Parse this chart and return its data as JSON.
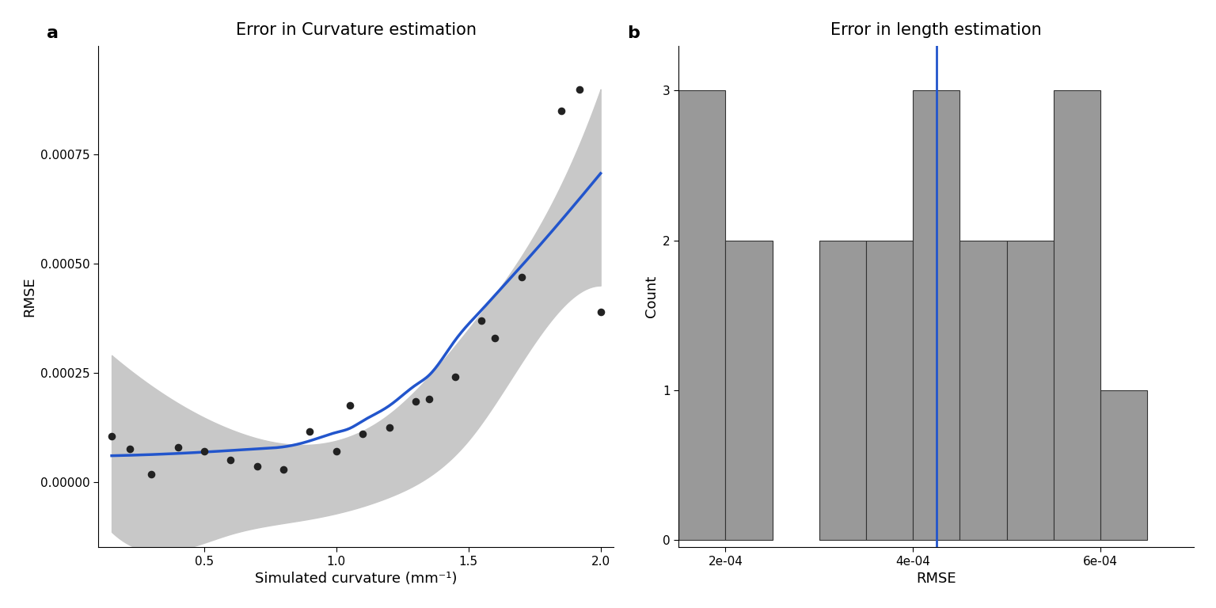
{
  "title_a": "Error in Curvature estimation",
  "title_b": "Error in length estimation",
  "label_a": "a",
  "label_b": "b",
  "xlabel_a": "Simulated curvature (mm⁻¹)",
  "ylabel_a": "RMSE",
  "xlabel_b": "RMSE",
  "ylabel_b": "Count",
  "scatter_x": [
    0.15,
    0.22,
    0.3,
    0.4,
    0.5,
    0.6,
    0.7,
    0.8,
    0.9,
    1.0,
    1.05,
    1.1,
    1.2,
    1.3,
    1.35,
    1.45,
    1.55,
    1.6,
    1.7,
    1.85,
    1.92,
    2.0
  ],
  "scatter_y": [
    0.000105,
    7.5e-05,
    1.8e-05,
    8e-05,
    7e-05,
    5e-05,
    3.5e-05,
    2.8e-05,
    0.000115,
    7e-05,
    0.000175,
    0.00011,
    0.000125,
    0.000185,
    0.00019,
    0.00024,
    0.00037,
    0.00033,
    0.00047,
    0.00085,
    0.0009,
    0.00039
  ],
  "xlim_a": [
    0.1,
    2.05
  ],
  "ylim_a": [
    -0.00015,
    0.001
  ],
  "yticks_a": [
    0.0,
    0.00025,
    0.0005,
    0.00075
  ],
  "xticks_a": [
    0.5,
    1.0,
    1.5,
    2.0
  ],
  "hist_bin_edges": [
    0.00015,
    0.0002,
    0.00025,
    0.0003,
    0.00035,
    0.0004,
    0.00045,
    0.0005,
    0.00055,
    0.0006,
    0.00065,
    0.0007
  ],
  "hist_counts": [
    3,
    2,
    0,
    2,
    2,
    3,
    2,
    2,
    3,
    1,
    0
  ],
  "blue_vline": 0.000425,
  "xlim_b": [
    0.00015,
    0.0007
  ],
  "ylim_b": [
    -0.05,
    3.3
  ],
  "yticks_b": [
    0,
    1,
    2,
    3
  ],
  "xticks_b": [
    0.0002,
    0.0004,
    0.0006
  ],
  "bar_color": "#999999",
  "bar_edge_color": "#333333",
  "scatter_color": "#222222",
  "smooth_color": "#2255cc",
  "band_color": "#c8c8c8",
  "background_color": "#ffffff",
  "blue_line_color": "#2255cc"
}
